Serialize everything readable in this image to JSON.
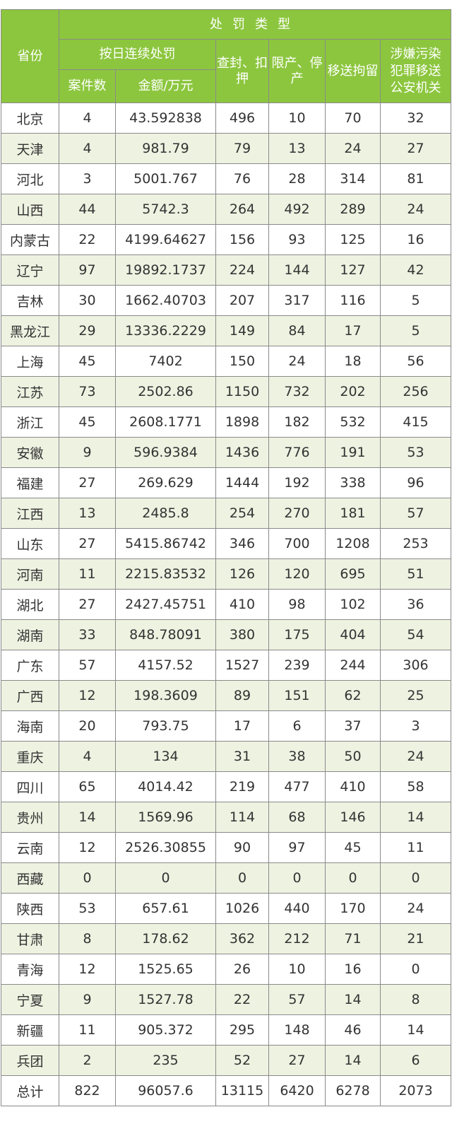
{
  "header": {
    "province": "省份",
    "penalty_type": "处罚类型",
    "daily_penalty": "按日连续处罚",
    "cases": "案件数",
    "amount": "金额/万元",
    "seal": "查封、扣押",
    "limit": "限产、停产",
    "detain": "移送拘留",
    "criminal": "涉嫌污染犯罪移送公安机关"
  },
  "colors": {
    "header_bg": "#8cc63e",
    "alt_row": "#eef2e1",
    "border": "#8a8a8a"
  },
  "rows": [
    [
      "北京",
      "4",
      "43.592838",
      "496",
      "10",
      "70",
      "32"
    ],
    [
      "天津",
      "4",
      "981.79",
      "79",
      "13",
      "24",
      "27"
    ],
    [
      "河北",
      "3",
      "5001.767",
      "76",
      "28",
      "314",
      "81"
    ],
    [
      "山西",
      "44",
      "5742.3",
      "264",
      "492",
      "289",
      "24"
    ],
    [
      "内蒙古",
      "22",
      "4199.64627",
      "156",
      "93",
      "125",
      "16"
    ],
    [
      "辽宁",
      "97",
      "19892.1737",
      "224",
      "144",
      "127",
      "42"
    ],
    [
      "吉林",
      "30",
      "1662.40703",
      "207",
      "317",
      "116",
      "5"
    ],
    [
      "黑龙江",
      "29",
      "13336.2229",
      "149",
      "84",
      "17",
      "5"
    ],
    [
      "上海",
      "45",
      "7402",
      "150",
      "24",
      "18",
      "56"
    ],
    [
      "江苏",
      "73",
      "2502.86",
      "1150",
      "732",
      "202",
      "256"
    ],
    [
      "浙江",
      "45",
      "2608.1771",
      "1898",
      "182",
      "532",
      "415"
    ],
    [
      "安徽",
      "9",
      "596.9384",
      "1436",
      "776",
      "191",
      "53"
    ],
    [
      "福建",
      "27",
      "269.629",
      "1444",
      "192",
      "338",
      "96"
    ],
    [
      "江西",
      "13",
      "2485.8",
      "254",
      "270",
      "181",
      "57"
    ],
    [
      "山东",
      "27",
      "5415.86742",
      "346",
      "700",
      "1208",
      "253"
    ],
    [
      "河南",
      "11",
      "2215.83532",
      "126",
      "120",
      "695",
      "51"
    ],
    [
      "湖北",
      "27",
      "2427.45751",
      "410",
      "98",
      "102",
      "36"
    ],
    [
      "湖南",
      "33",
      "848.78091",
      "380",
      "175",
      "404",
      "54"
    ],
    [
      "广东",
      "57",
      "4157.52",
      "1527",
      "239",
      "244",
      "306"
    ],
    [
      "广西",
      "12",
      "198.3609",
      "89",
      "151",
      "62",
      "25"
    ],
    [
      "海南",
      "20",
      "793.75",
      "17",
      "6",
      "37",
      "3"
    ],
    [
      "重庆",
      "4",
      "134",
      "31",
      "38",
      "50",
      "24"
    ],
    [
      "四川",
      "65",
      "4014.42",
      "219",
      "477",
      "410",
      "58"
    ],
    [
      "贵州",
      "14",
      "1569.96",
      "114",
      "68",
      "146",
      "14"
    ],
    [
      "云南",
      "12",
      "2526.30855",
      "90",
      "97",
      "45",
      "11"
    ],
    [
      "西藏",
      "0",
      "0",
      "0",
      "0",
      "0",
      "0"
    ],
    [
      "陕西",
      "53",
      "657.61",
      "1026",
      "440",
      "170",
      "24"
    ],
    [
      "甘肃",
      "8",
      "178.62",
      "362",
      "212",
      "71",
      "21"
    ],
    [
      "青海",
      "12",
      "1525.65",
      "26",
      "10",
      "16",
      "0"
    ],
    [
      "宁夏",
      "9",
      "1527.78",
      "22",
      "57",
      "14",
      "8"
    ],
    [
      "新疆",
      "11",
      "905.372",
      "295",
      "148",
      "46",
      "14"
    ],
    [
      "兵团",
      "2",
      "235",
      "52",
      "27",
      "14",
      "6"
    ],
    [
      "总计",
      "822",
      "96057.6",
      "13115",
      "6420",
      "6278",
      "2073"
    ]
  ]
}
